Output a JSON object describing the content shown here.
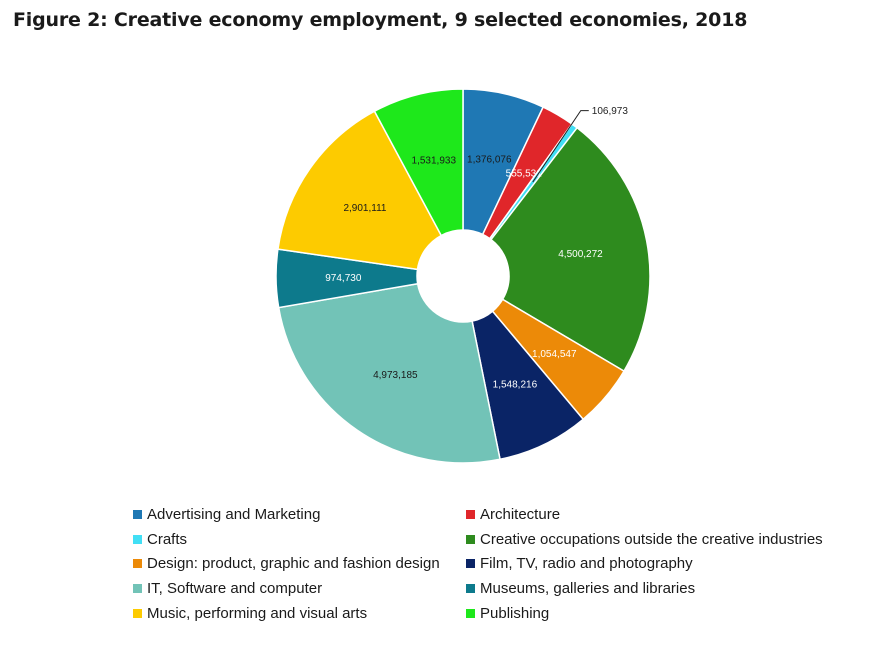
{
  "figure": {
    "title": "Figure 2: Creative economy employment, 9 selected economies, 2018"
  },
  "chart_data": {
    "type": "pie",
    "donut": true,
    "title": "Figure 2: Creative economy employment, 9 selected economies, 2018",
    "legend_position": "bottom",
    "slices": [
      {
        "label": "Advertising and Marketing",
        "value": 1376076,
        "display": "1,376,076",
        "color": "#1f78b4"
      },
      {
        "label": "Architecture",
        "value": 555531,
        "display": "555,531",
        "color": "#e0262a"
      },
      {
        "label": "Crafts",
        "value": 106973,
        "display": "106,973",
        "color": "#41dff5"
      },
      {
        "label": "Creative occupations outside the creative industries",
        "value": 4500272,
        "display": "4,500,272",
        "color": "#2e8b1e"
      },
      {
        "label": "Design: product, graphic and fashion design",
        "value": 1054547,
        "display": "1,054,547",
        "color": "#ec8a08"
      },
      {
        "label": "Film, TV, radio and photography",
        "value": 1548216,
        "display": "1,548,216",
        "color": "#0a2466"
      },
      {
        "label": "IT, Software and computer",
        "value": 4973185,
        "display": "4,973,185",
        "color": "#72c3b7"
      },
      {
        "label": "Museums, galleries and libraries",
        "value": 974730,
        "display": "974,730",
        "color": "#0d7a8c"
      },
      {
        "label": "Music, performing and visual arts",
        "value": 2901111,
        "display": "2,901,111",
        "color": "#fdcb00"
      },
      {
        "label": "Publishing",
        "value": 1531933,
        "display": "1,531,933",
        "color": "#1ee81b"
      }
    ]
  },
  "legend": {
    "items": [
      {
        "label": "Advertising and Marketing",
        "color": "#1f78b4"
      },
      {
        "label": "Architecture",
        "color": "#e0262a"
      },
      {
        "label": "Crafts",
        "color": "#41dff5"
      },
      {
        "label": "Creative occupations outside the creative industries",
        "color": "#2e8b1e"
      },
      {
        "label": "Design: product, graphic and fashion design",
        "color": "#ec8a08"
      },
      {
        "label": "Film, TV, radio and photography",
        "color": "#0a2466"
      },
      {
        "label": "IT, Software and computer",
        "color": "#72c3b7"
      },
      {
        "label": "Museums, galleries and libraries",
        "color": "#0d7a8c"
      },
      {
        "label": "Music, performing and visual arts",
        "color": "#fdcb00"
      },
      {
        "label": "Publishing",
        "color": "#1ee81b"
      }
    ]
  }
}
